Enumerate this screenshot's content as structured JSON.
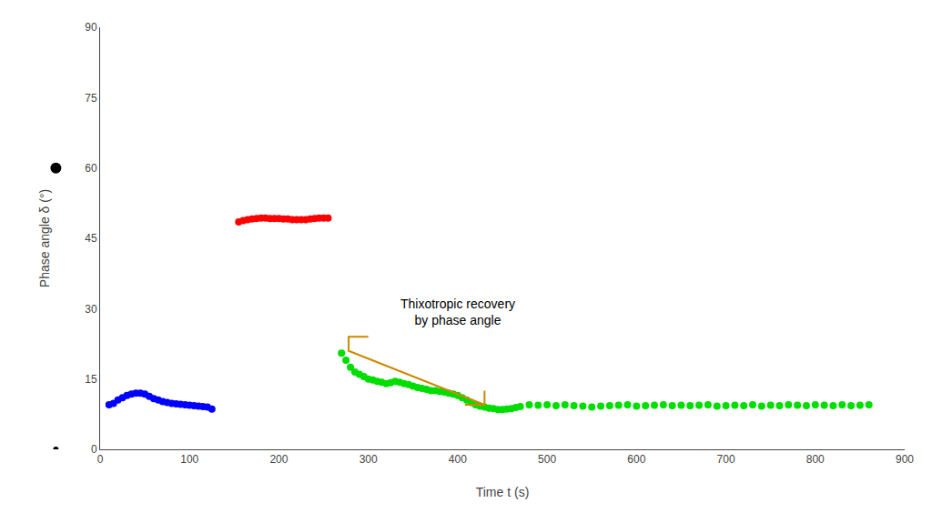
{
  "chart_data": {
    "type": "scatter",
    "title": "",
    "xlabel": "Time t (s)",
    "ylabel": "Phase angle δ (°)",
    "xlim": [
      0,
      900
    ],
    "ylim": [
      0,
      90
    ],
    "xticks": [
      0,
      100,
      200,
      300,
      400,
      500,
      600,
      700,
      800,
      900
    ],
    "yticks": [
      0,
      15,
      30,
      45,
      60,
      75,
      90
    ],
    "grid": false,
    "series": [
      {
        "type": "scatter",
        "color": "#0000ff",
        "marker": "circle",
        "x": [
          10,
          15,
          20,
          25,
          30,
          35,
          40,
          45,
          50,
          55,
          60,
          65,
          70,
          75,
          80,
          85,
          90,
          95,
          100,
          105,
          110,
          115,
          120,
          125
        ],
        "values": [
          9.5,
          9.8,
          10.5,
          11.0,
          11.5,
          11.8,
          12.0,
          12.0,
          11.8,
          11.3,
          10.8,
          10.5,
          10.2,
          10.0,
          9.8,
          9.7,
          9.6,
          9.5,
          9.4,
          9.3,
          9.2,
          9.1,
          9.0,
          8.6
        ]
      },
      {
        "type": "scatter",
        "color": "#ff0000",
        "marker": "circle",
        "x": [
          155,
          160,
          165,
          170,
          175,
          180,
          185,
          190,
          195,
          200,
          205,
          210,
          215,
          220,
          225,
          230,
          235,
          240,
          245,
          250,
          255
        ],
        "values": [
          48.5,
          48.8,
          49.0,
          49.1,
          49.2,
          49.3,
          49.3,
          49.2,
          49.2,
          49.2,
          49.1,
          49.1,
          49.0,
          49.0,
          49.0,
          49.0,
          49.1,
          49.2,
          49.3,
          49.3,
          49.3
        ]
      },
      {
        "type": "scatter",
        "color": "#00dd00",
        "marker": "circle",
        "x": [
          270,
          275,
          280,
          285,
          290,
          295,
          300,
          305,
          310,
          315,
          320,
          325,
          330,
          335,
          340,
          345,
          350,
          355,
          360,
          365,
          370,
          375,
          380,
          385,
          390,
          395,
          400,
          405,
          410,
          415,
          420,
          425,
          430,
          435,
          440,
          445,
          450,
          455,
          460,
          465,
          470,
          480,
          490,
          500,
          510,
          520,
          530,
          540,
          550,
          560,
          570,
          580,
          590,
          600,
          610,
          620,
          630,
          640,
          650,
          660,
          670,
          680,
          690,
          700,
          710,
          720,
          730,
          740,
          750,
          760,
          770,
          780,
          790,
          800,
          810,
          820,
          830,
          840,
          850,
          860
        ],
        "values": [
          20.5,
          19.0,
          17.5,
          16.5,
          16.0,
          15.5,
          15.0,
          14.8,
          14.5,
          14.3,
          14.0,
          14.2,
          14.5,
          14.3,
          14.0,
          13.8,
          13.5,
          13.2,
          13.0,
          12.8,
          12.5,
          12.5,
          12.3,
          12.2,
          12.0,
          11.8,
          11.5,
          11.0,
          10.5,
          10.0,
          9.5,
          9.2,
          9.0,
          8.8,
          8.7,
          8.5,
          8.5,
          8.6,
          8.7,
          8.9,
          9.1,
          9.5,
          9.4,
          9.5,
          9.3,
          9.5,
          9.3,
          9.2,
          9.0,
          9.2,
          9.3,
          9.4,
          9.5,
          9.2,
          9.3,
          9.4,
          9.5,
          9.3,
          9.4,
          9.3,
          9.4,
          9.5,
          9.2,
          9.3,
          9.4,
          9.3,
          9.5,
          9.2,
          9.4,
          9.3,
          9.5,
          9.4,
          9.3,
          9.5,
          9.4,
          9.3,
          9.5,
          9.3,
          9.4,
          9.5
        ]
      },
      {
        "type": "line",
        "color": "#cc8800",
        "line_style": "solid",
        "x": [
          300,
          278,
          278,
          430,
          430,
          null,
          408,
          430
        ],
        "values": [
          24.0,
          24.0,
          21.0,
          9.5,
          12.5,
          null,
          9.5,
          9.5
        ]
      }
    ],
    "annotations": [
      {
        "text": "Thixotropic recovery\nby phase angle",
        "x": 400,
        "y": 33
      }
    ],
    "bullet_dots": {
      "y": [
        0,
        60
      ],
      "color": "black"
    }
  }
}
